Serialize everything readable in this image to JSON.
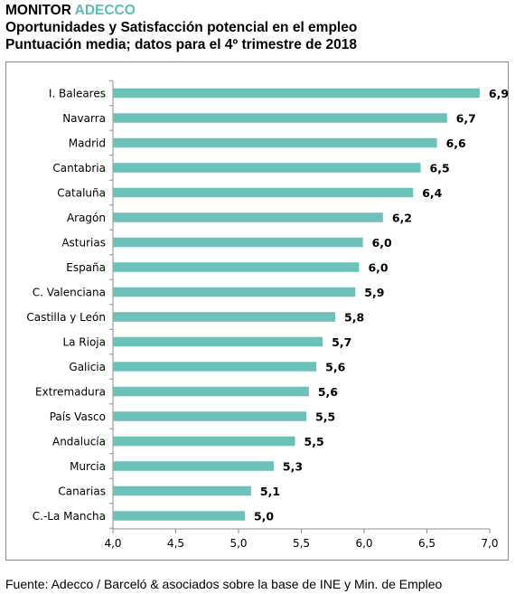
{
  "header": {
    "brand_main": "MONITOR",
    "brand_accent": "ADECCO",
    "title": "Oportunidades y Satisfacción potencial en el empleo",
    "subtitle": "Puntuación media; datos para el 4º trimestre de 2018"
  },
  "footer": {
    "source": "Fuente: Adecco / Barceló & asociados sobre la base de INE y Min. de Empleo"
  },
  "colors": {
    "bar": "#6cc1b8",
    "accent": "#5bbdb4",
    "axis": "#8c8c8c"
  },
  "chart_data": {
    "type": "bar",
    "orientation": "horizontal",
    "title": "",
    "xlabel": "",
    "ylabel": "",
    "xlim": [
      4.0,
      7.0
    ],
    "x_ticks": [
      "4,0",
      "4,5",
      "5,0",
      "5,5",
      "6,0",
      "6,5",
      "7,0"
    ],
    "x_tick_values": [
      4.0,
      4.5,
      5.0,
      5.5,
      6.0,
      6.5,
      7.0
    ],
    "grid": false,
    "categories": [
      "I. Baleares",
      "Navarra",
      "Madrid",
      "Cantabria",
      "Cataluña",
      "Aragón",
      "Asturias",
      "España",
      "C. Valenciana",
      "Castilla y León",
      "La Rioja",
      "Galicia",
      "Extremadura",
      "País Vasco",
      "Andalucía",
      "Murcia",
      "Canarias",
      "C.-La Mancha"
    ],
    "values": [
      6.92,
      6.66,
      6.58,
      6.45,
      6.39,
      6.15,
      5.99,
      5.96,
      5.93,
      5.77,
      5.67,
      5.62,
      5.56,
      5.54,
      5.45,
      5.28,
      5.1,
      5.05
    ],
    "data_labels": [
      "6,9",
      "6,7",
      "6,6",
      "6,5",
      "6,4",
      "6,2",
      "6,0",
      "6,0",
      "5,9",
      "5,8",
      "5,7",
      "5,6",
      "5,6",
      "5,5",
      "5,5",
      "5,3",
      "5,1",
      "5,0"
    ]
  }
}
